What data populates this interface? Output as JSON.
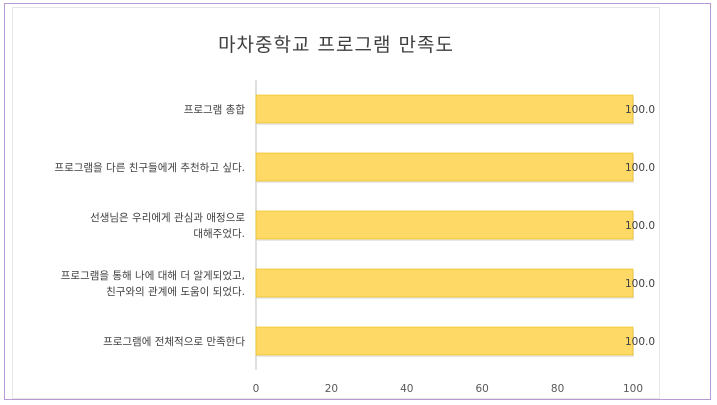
{
  "chart_data": {
    "type": "bar",
    "orientation": "horizontal",
    "title": "마차중학교  프로그램 만족도",
    "categories": [
      [
        "프로그램 총합"
      ],
      [
        "프로그램을 다른 친구들에게 추천하고 싶다."
      ],
      [
        "선생님은 우리에게 관심과 애정으로",
        "대해주었다."
      ],
      [
        "프로그램을 통해 나에 대해 더 알게되었고,",
        "친구와의 관계에 도움이 되었다."
      ],
      [
        "프로그램에 전체적으로 만족한다"
      ]
    ],
    "values": [
      100.0,
      100.0,
      100.0,
      100.0,
      100.0
    ],
    "data_labels": [
      "100.0",
      "100.0",
      "100.0",
      "100.0",
      "100.0"
    ],
    "xlim": [
      0,
      100
    ],
    "xticks": [
      "0",
      "20",
      "40",
      "60",
      "80",
      "100"
    ],
    "grid": false,
    "legend": "none",
    "colors": {
      "bar": "#ffd966",
      "bar_edge": "#e6b800",
      "axis": "#bfbfbf",
      "frame": "#b79ad6"
    }
  }
}
